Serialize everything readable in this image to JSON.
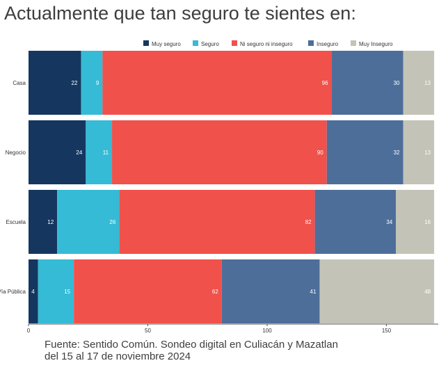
{
  "chart_data": {
    "type": "bar",
    "orientation": "horizontal",
    "stacked": true,
    "title": "Actualmente que tan seguro te sientes en:",
    "categories": [
      "Casa",
      "Negocio",
      "Escuela",
      "Vía Pública"
    ],
    "series": [
      {
        "name": "Muy seguro",
        "color": "#15375f",
        "values": [
          22,
          24,
          12,
          4
        ]
      },
      {
        "name": "Seguro",
        "color": "#35bbd5",
        "values": [
          9,
          11,
          26,
          15
        ]
      },
      {
        "name": "Ni seguro ni inseguro",
        "color": "#f0514b",
        "values": [
          96,
          90,
          82,
          62
        ]
      },
      {
        "name": "Inseguro",
        "color": "#4e6e9a",
        "values": [
          30,
          32,
          34,
          41
        ]
      },
      {
        "name": "Muy Inseguro",
        "color": "#c3c4b7",
        "values": [
          13,
          13,
          16,
          48
        ]
      }
    ],
    "xticks": [
      0,
      50,
      100,
      150
    ],
    "xlim": [
      0,
      170
    ],
    "legend_position": "top-right",
    "grid": false
  },
  "source": {
    "line1": "Fuente: Sentido Común.  Sondeo digital en Culiacán y Mazatlan",
    "line2": "del 15 al 17 de noviembre 2024"
  }
}
